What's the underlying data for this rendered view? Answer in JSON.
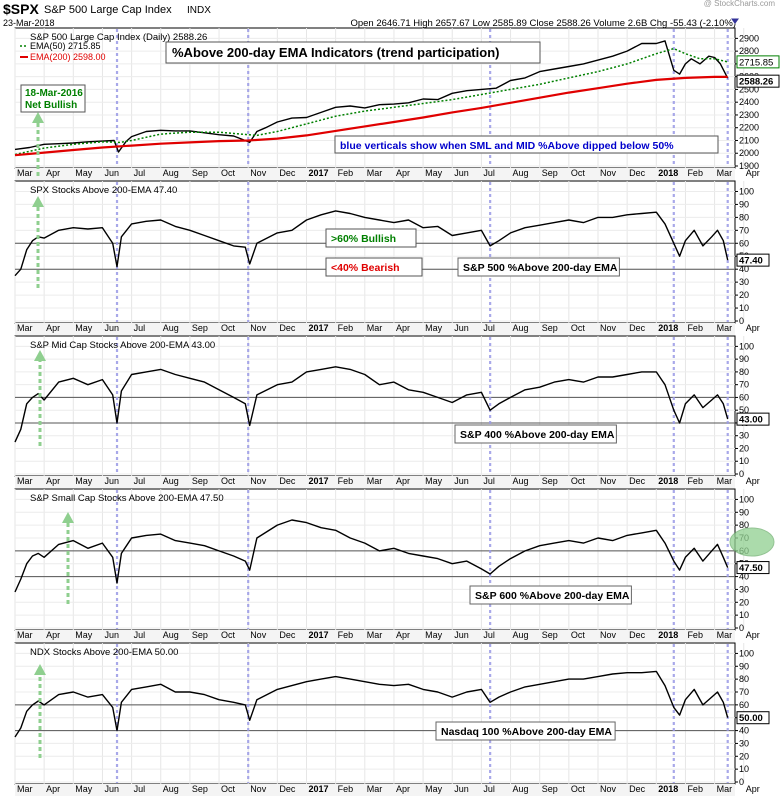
{
  "header": {
    "symbol": "$SPX",
    "name": "S&P 500 Large Cap Index",
    "exchange": "INDX",
    "date": "23-Mar-2018",
    "quote": "Open 2646.71   High 2657.67   Low 2585.89   Close 2588.26   Volume 2.6B   Chg -55.43 (-2.10%)",
    "watermark": "@ StockCharts.com"
  },
  "months": [
    "Mar",
    "Apr",
    "May",
    "Jun",
    "Jul",
    "Aug",
    "Sep",
    "Oct",
    "Nov",
    "Dec",
    "2017",
    "Feb",
    "Mar",
    "Apr",
    "May",
    "Jun",
    "Jul",
    "Aug",
    "Sep",
    "Oct",
    "Nov",
    "Dec",
    "2018",
    "Feb",
    "Mar",
    "Apr"
  ],
  "colors": {
    "price": "#000000",
    "ema50": "#008000",
    "ema200": "#e00000",
    "verticals": "#9a9ae6",
    "green_arrow": "#8fcf8f",
    "bullish_text": "#008000",
    "bearish_text": "#e00000",
    "note_text": "#0000cc",
    "highlight": "#90d090"
  },
  "annotations": {
    "main_title": "%Above 200-day EMA Indicators (trend participation)",
    "net_bullish_date": "18-Mar-2016",
    "net_bullish_label": "Net Bullish",
    "verticals_note": "blue verticals show when SML and MID %Above dipped below 50%",
    "bullish": ">60% Bullish",
    "bearish": "<40% Bearish"
  },
  "chart_data": [
    {
      "type": "line",
      "title": "S&P 500 Large Cap Index (Daily) 2588.26",
      "ylim": [
        1900,
        2950
      ],
      "yticks": [
        1900,
        2000,
        2100,
        2200,
        2300,
        2400,
        2500,
        2600,
        2700,
        2800,
        2900
      ],
      "last_value_labels": [
        "2715.85",
        "2588.26"
      ],
      "series": [
        {
          "name": "S&P 500 Large Cap Index (Daily) 2588.26",
          "role": "price",
          "x": [
            0,
            0.5,
            1,
            1.5,
            2,
            2.5,
            3,
            3.4,
            3.55,
            3.8,
            4,
            4.5,
            5,
            5.5,
            6,
            6.5,
            7,
            7.5,
            7.9,
            8.05,
            8.3,
            8.6,
            9,
            9.5,
            10,
            10.5,
            11,
            11.5,
            12,
            12.5,
            13,
            13.5,
            14,
            14.5,
            15,
            15.5,
            16,
            16.5,
            17,
            17.5,
            18,
            18.5,
            19,
            19.5,
            20,
            20.5,
            21,
            21.5,
            22,
            22.3,
            22.6,
            22.8,
            23,
            23.2,
            23.5,
            23.8,
            24,
            24.2,
            24.45
          ],
          "y": [
            2030,
            2045,
            2070,
            2075,
            2080,
            2090,
            2095,
            2100,
            2010,
            2090,
            2130,
            2170,
            2180,
            2175,
            2175,
            2160,
            2145,
            2135,
            2100,
            2085,
            2170,
            2200,
            2245,
            2275,
            2280,
            2320,
            2360,
            2370,
            2355,
            2380,
            2385,
            2395,
            2425,
            2420,
            2470,
            2490,
            2500,
            2510,
            2570,
            2590,
            2640,
            2660,
            2680,
            2700,
            2730,
            2760,
            2800,
            2860,
            2860,
            2880,
            2650,
            2620,
            2700,
            2740,
            2700,
            2760,
            2750,
            2700,
            2588
          ]
        },
        {
          "name": "EMA(50) 2715.85",
          "role": "ema50",
          "x": [
            0,
            1,
            2,
            3,
            3.6,
            4,
            5,
            6,
            7,
            8,
            8.3,
            9,
            10,
            11,
            12,
            13,
            14,
            15,
            16,
            17,
            18,
            19,
            20,
            21,
            22,
            22.6,
            23,
            23.5,
            24,
            24.45
          ],
          "y": [
            1990,
            2040,
            2070,
            2090,
            2085,
            2100,
            2150,
            2165,
            2165,
            2145,
            2140,
            2170,
            2230,
            2290,
            2330,
            2360,
            2390,
            2420,
            2460,
            2500,
            2540,
            2590,
            2640,
            2700,
            2780,
            2820,
            2780,
            2740,
            2740,
            2716
          ]
        },
        {
          "name": "EMA(200) 2598.00",
          "role": "ema200",
          "x": [
            0,
            1,
            2,
            3,
            4,
            5,
            6,
            7,
            8,
            9,
            10,
            11,
            12,
            13,
            14,
            15,
            16,
            17,
            18,
            19,
            20,
            21,
            22,
            23,
            24,
            24.45
          ],
          "y": [
            1985,
            2005,
            2025,
            2045,
            2060,
            2075,
            2085,
            2095,
            2100,
            2115,
            2140,
            2175,
            2210,
            2245,
            2280,
            2320,
            2355,
            2395,
            2435,
            2475,
            2510,
            2545,
            2575,
            2590,
            2598,
            2598
          ]
        }
      ]
    },
    {
      "type": "line",
      "title": "SPX Stocks Above 200-EMA 47.40",
      "ylim": [
        0,
        105
      ],
      "yticks": [
        0,
        10,
        20,
        30,
        40,
        50,
        60,
        70,
        80,
        90,
        100
      ],
      "reference_lines": [
        60,
        40
      ],
      "last_value_label": "47.40",
      "series_label": "S&P 500 %Above 200-day EMA",
      "series": [
        {
          "name": "SPX Stocks Above 200-EMA 47.40",
          "x": [
            0,
            0.2,
            0.4,
            0.6,
            0.8,
            1,
            1.5,
            2,
            2.5,
            3,
            3.35,
            3.5,
            3.65,
            4,
            4.5,
            5,
            5.5,
            6,
            6.5,
            7,
            7.5,
            7.9,
            8.05,
            8.3,
            9,
            9.5,
            10,
            10.5,
            11,
            11.5,
            12,
            12.5,
            13,
            13.5,
            14,
            14.5,
            15,
            15.5,
            16,
            16.3,
            16.6,
            17,
            17.5,
            18,
            18.5,
            19,
            19.5,
            20,
            20.5,
            21,
            21.5,
            22,
            22.3,
            22.6,
            22.8,
            23,
            23.3,
            23.6,
            23.9,
            24.1,
            24.3,
            24.45
          ],
          "y": [
            35,
            40,
            55,
            62,
            65,
            64,
            70,
            72,
            71,
            72,
            60,
            42,
            65,
            75,
            77,
            78,
            73,
            70,
            66,
            62,
            58,
            57,
            44,
            60,
            68,
            70,
            78,
            82,
            85,
            83,
            80,
            78,
            76,
            78,
            72,
            73,
            66,
            68,
            70,
            58,
            62,
            68,
            72,
            74,
            76,
            78,
            76,
            80,
            80,
            82,
            83,
            84,
            75,
            60,
            50,
            62,
            70,
            58,
            65,
            70,
            62,
            47
          ]
        }
      ]
    },
    {
      "type": "line",
      "title": "S&P Mid Cap Stocks Above 200-EMA 43.00",
      "ylim": [
        0,
        105
      ],
      "yticks": [
        0,
        10,
        20,
        30,
        40,
        50,
        60,
        70,
        80,
        90,
        100
      ],
      "reference_lines": [
        60,
        40
      ],
      "last_value_label": "43.00",
      "series_label": "S&P 400 %Above 200-day EMA",
      "series": [
        {
          "name": "S&P Mid Cap Stocks Above 200-EMA 43.00",
          "x": [
            0,
            0.2,
            0.4,
            0.6,
            0.8,
            1,
            1.5,
            2,
            2.5,
            3,
            3.35,
            3.5,
            3.65,
            4,
            4.5,
            5,
            5.5,
            6,
            6.5,
            7,
            7.5,
            7.9,
            8.05,
            8.3,
            9,
            9.5,
            10,
            10.5,
            11,
            11.5,
            12,
            12.5,
            13,
            13.5,
            14,
            14.5,
            15,
            15.5,
            16,
            16.3,
            16.6,
            17,
            17.5,
            18,
            18.5,
            19,
            19.5,
            20,
            20.5,
            21,
            21.5,
            22,
            22.3,
            22.6,
            22.8,
            23,
            23.3,
            23.6,
            23.9,
            24.1,
            24.3,
            24.45
          ],
          "y": [
            25,
            35,
            55,
            60,
            63,
            58,
            72,
            75,
            70,
            74,
            62,
            40,
            65,
            78,
            80,
            82,
            78,
            75,
            72,
            66,
            60,
            55,
            38,
            62,
            70,
            72,
            80,
            82,
            84,
            82,
            78,
            70,
            72,
            66,
            64,
            60,
            56,
            62,
            64,
            50,
            55,
            60,
            66,
            68,
            72,
            74,
            72,
            76,
            76,
            78,
            80,
            80,
            70,
            50,
            40,
            55,
            62,
            52,
            58,
            62,
            55,
            43
          ]
        }
      ]
    },
    {
      "type": "line",
      "title": "S&P Small Cap Stocks Above 200-EMA 47.50",
      "ylim": [
        0,
        105
      ],
      "yticks": [
        0,
        10,
        20,
        30,
        40,
        50,
        60,
        70,
        80,
        90,
        100
      ],
      "reference_lines": [
        60,
        40
      ],
      "last_value_label": "47.50",
      "series_label": "S&P 600 %Above 200-day EMA",
      "series": [
        {
          "name": "S&P Small Cap Stocks Above 200-EMA 47.50",
          "x": [
            0,
            0.2,
            0.4,
            0.6,
            0.8,
            1,
            1.5,
            2,
            2.5,
            3,
            3.35,
            3.5,
            3.65,
            4,
            4.5,
            5,
            5.5,
            6,
            6.5,
            7,
            7.5,
            7.9,
            8.05,
            8.3,
            9,
            9.5,
            10,
            10.5,
            11,
            11.5,
            12,
            12.5,
            13,
            13.5,
            14,
            14.5,
            15,
            15.5,
            16,
            16.3,
            16.6,
            17,
            17.5,
            18,
            18.5,
            19,
            19.5,
            20,
            20.5,
            21,
            21.5,
            22,
            22.3,
            22.6,
            22.8,
            23,
            23.3,
            23.6,
            23.9,
            24.1,
            24.3,
            24.45
          ],
          "y": [
            28,
            38,
            50,
            56,
            58,
            55,
            65,
            68,
            62,
            66,
            55,
            35,
            58,
            70,
            72,
            73,
            68,
            66,
            64,
            60,
            56,
            52,
            45,
            70,
            80,
            84,
            82,
            78,
            76,
            70,
            66,
            60,
            62,
            58,
            56,
            54,
            50,
            52,
            46,
            42,
            48,
            54,
            60,
            64,
            66,
            68,
            66,
            70,
            68,
            72,
            74,
            76,
            66,
            52,
            45,
            55,
            62,
            52,
            60,
            65,
            55,
            47
          ]
        }
      ]
    },
    {
      "type": "line",
      "title": "NDX Stocks Above 200-EMA 50.00",
      "ylim": [
        0,
        105
      ],
      "yticks": [
        0,
        10,
        20,
        30,
        40,
        50,
        60,
        70,
        80,
        90,
        100
      ],
      "reference_lines": [
        60,
        40
      ],
      "last_value_label": "50.00",
      "series_label": "Nasdaq 100 %Above 200-day EMA",
      "series": [
        {
          "name": "NDX Stocks Above 200-EMA 50.00",
          "x": [
            0,
            0.2,
            0.4,
            0.6,
            0.8,
            1,
            1.5,
            2,
            2.5,
            3,
            3.35,
            3.5,
            3.65,
            4,
            4.5,
            5,
            5.5,
            6,
            6.5,
            7,
            7.5,
            7.9,
            8.05,
            8.3,
            9,
            9.5,
            10,
            10.5,
            11,
            11.5,
            12,
            12.5,
            13,
            13.5,
            14,
            14.5,
            15,
            15.5,
            16,
            16.3,
            16.6,
            17,
            17.5,
            18,
            18.5,
            19,
            19.5,
            20,
            20.5,
            21,
            21.5,
            22,
            22.3,
            22.6,
            22.8,
            23,
            23.3,
            23.6,
            23.9,
            24.1,
            24.3,
            24.45
          ],
          "y": [
            35,
            42,
            55,
            60,
            63,
            60,
            68,
            70,
            66,
            68,
            58,
            40,
            62,
            72,
            74,
            76,
            70,
            70,
            68,
            64,
            62,
            60,
            48,
            64,
            72,
            75,
            78,
            80,
            82,
            80,
            78,
            76,
            75,
            76,
            72,
            70,
            66,
            70,
            72,
            62,
            66,
            70,
            74,
            76,
            78,
            80,
            80,
            82,
            84,
            85,
            85,
            86,
            75,
            58,
            52,
            64,
            72,
            60,
            66,
            70,
            62,
            50
          ]
        }
      ]
    }
  ]
}
